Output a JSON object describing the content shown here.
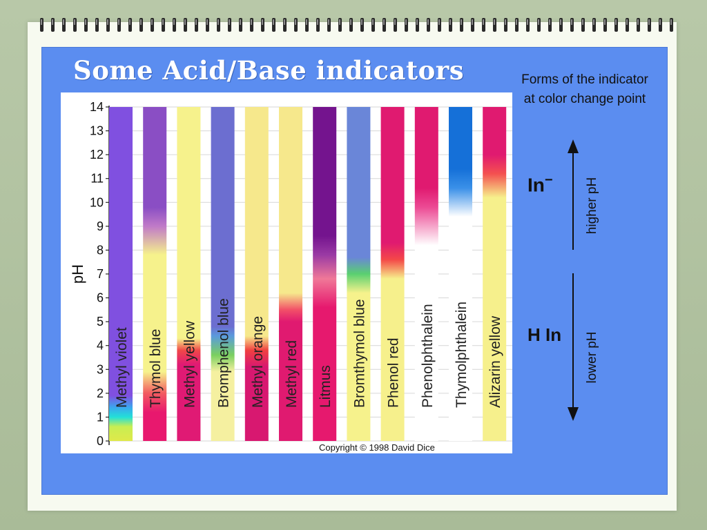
{
  "page": {
    "title": "Some Acid/Base indicators",
    "copyright": "Copyright © 1998 David Dice"
  },
  "side": {
    "forms_note": "Forms of the indicator at color change point",
    "in_minus_base": "In",
    "in_minus_sup": "−",
    "h_in": "H In",
    "higher_ph": "higher pH",
    "lower_ph": "lower pH"
  },
  "colors": {
    "panel_blue": "#5b8df0",
    "colorless": "#ffffff"
  },
  "chart_data": {
    "type": "bar",
    "ylabel": "pH",
    "ylim": [
      0,
      14
    ],
    "yticks": [
      0,
      1,
      2,
      3,
      4,
      5,
      6,
      7,
      8,
      9,
      10,
      11,
      12,
      13,
      14
    ],
    "grid": true,
    "indicators": [
      {
        "name": "Methyl violet",
        "stops": [
          [
            0,
            "#dfe94a"
          ],
          [
            0.6,
            "#c8ee52"
          ],
          [
            1.0,
            "#22e0d8"
          ],
          [
            1.4,
            "#3aa8ee"
          ],
          [
            1.9,
            "#8050e0"
          ],
          [
            14,
            "#8050e0"
          ]
        ]
      },
      {
        "name": "Thymol blue",
        "stops": [
          [
            0,
            "#e8186e"
          ],
          [
            1.2,
            "#e8186e"
          ],
          [
            2.0,
            "#f25a60"
          ],
          [
            2.9,
            "#f6f28c"
          ],
          [
            7.8,
            "#f6f28c"
          ],
          [
            9.0,
            "#c07ac8"
          ],
          [
            9.8,
            "#8a4ec4"
          ],
          [
            14,
            "#8a4ec4"
          ]
        ]
      },
      {
        "name": "Methyl yellow",
        "stops": [
          [
            0,
            "#e01a74"
          ],
          [
            3.2,
            "#e01a74"
          ],
          [
            3.8,
            "#f04848"
          ],
          [
            4.3,
            "#f6f28c"
          ],
          [
            14,
            "#f6f28c"
          ]
        ]
      },
      {
        "name": "Bromphenol blue",
        "stops": [
          [
            0,
            "#f5f0a0"
          ],
          [
            2.9,
            "#f5f0a0"
          ],
          [
            3.6,
            "#7ad060"
          ],
          [
            4.4,
            "#5a9adc"
          ],
          [
            4.8,
            "#6c6ed0"
          ],
          [
            14,
            "#6c6ed0"
          ]
        ]
      },
      {
        "name": "Methyl orange",
        "stops": [
          [
            0,
            "#d81870"
          ],
          [
            3.1,
            "#d81870"
          ],
          [
            3.8,
            "#f04040"
          ],
          [
            4.4,
            "#f6e88c"
          ],
          [
            14,
            "#f6e88c"
          ]
        ]
      },
      {
        "name": "Methyl red",
        "stops": [
          [
            0,
            "#e01a70"
          ],
          [
            5.0,
            "#e01a70"
          ],
          [
            5.5,
            "#f25068"
          ],
          [
            6.2,
            "#f6e88c"
          ],
          [
            14,
            "#f6e88c"
          ]
        ]
      },
      {
        "name": "Litmus",
        "stops": [
          [
            0,
            "#e6196e"
          ],
          [
            5.6,
            "#e6196e"
          ],
          [
            6.8,
            "#f07898"
          ],
          [
            7.8,
            "#9a3aa4"
          ],
          [
            8.6,
            "#74148e"
          ],
          [
            14,
            "#74148e"
          ]
        ]
      },
      {
        "name": "Bromthymol blue",
        "stops": [
          [
            0,
            "#f6f28c"
          ],
          [
            6.2,
            "#f6f28c"
          ],
          [
            7.0,
            "#5ad070"
          ],
          [
            7.7,
            "#6a86d8"
          ],
          [
            14,
            "#6a86d8"
          ]
        ]
      },
      {
        "name": "Phenol red",
        "stops": [
          [
            0,
            "#f6f08c"
          ],
          [
            6.8,
            "#f6f08c"
          ],
          [
            7.6,
            "#f44848"
          ],
          [
            8.3,
            "#e01a70"
          ],
          [
            14,
            "#e01a70"
          ]
        ]
      },
      {
        "name": "Phenolphthalein",
        "stops": [
          [
            0,
            "#ffffff"
          ],
          [
            8.2,
            "#ffffff"
          ],
          [
            9.8,
            "#ec4a94"
          ],
          [
            10.6,
            "#e01a70"
          ],
          [
            14,
            "#e01a70"
          ]
        ]
      },
      {
        "name": "Thymolphthalein",
        "stops": [
          [
            0,
            "#ffffff"
          ],
          [
            9.4,
            "#ffffff"
          ],
          [
            10.6,
            "#3a90e8"
          ],
          [
            11.4,
            "#1570d8"
          ],
          [
            14,
            "#1570d8"
          ]
        ]
      },
      {
        "name": "Alizarin yellow",
        "stops": [
          [
            0,
            "#f6f08c"
          ],
          [
            10.2,
            "#f6f08c"
          ],
          [
            11.2,
            "#f45050"
          ],
          [
            12.0,
            "#e01a70"
          ],
          [
            14,
            "#e01a70"
          ]
        ]
      }
    ]
  }
}
